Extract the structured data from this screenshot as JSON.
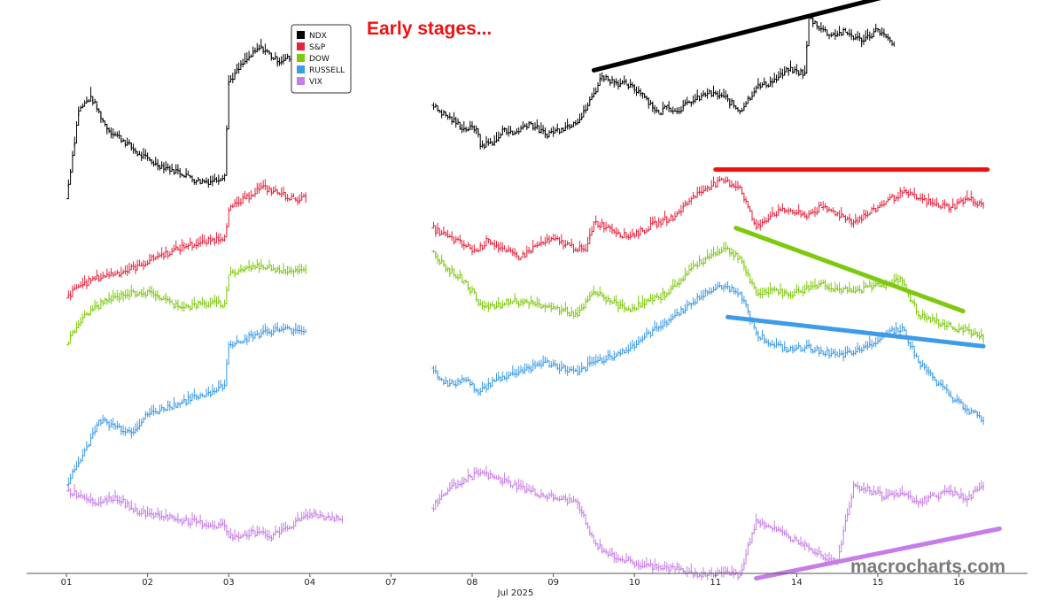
{
  "annotation": "Early stages...",
  "watermark": "macrocharts.com",
  "chart_data": {
    "type": "line",
    "title": "",
    "xlabel": "Jul 2025",
    "ylabel": "",
    "x_ticks": [
      "01",
      "02",
      "03",
      "04",
      "07",
      "08",
      "09",
      "10",
      "11",
      "14",
      "15",
      "16"
    ],
    "legend_position": "top-left",
    "grid": false,
    "series": [
      {
        "name": "NDX",
        "color": "#000000",
        "values": [
          [
            0.0,
            38
          ],
          [
            0.15,
            68
          ],
          [
            0.3,
            73
          ],
          [
            0.5,
            62
          ],
          [
            0.7,
            58
          ],
          [
            0.9,
            53
          ],
          [
            1.1,
            50
          ],
          [
            1.3,
            48
          ],
          [
            1.5,
            46
          ],
          [
            1.6,
            44
          ],
          [
            1.8,
            44
          ],
          [
            1.95,
            46
          ],
          [
            2.0,
            78
          ],
          [
            2.2,
            85
          ],
          [
            2.4,
            90
          ],
          [
            2.6,
            85
          ],
          [
            2.7,
            86
          ],
          [
            2.9,
            86
          ],
          [
            4.5,
            70
          ],
          [
            4.7,
            66
          ],
          [
            4.9,
            62
          ],
          [
            5.05,
            62
          ],
          [
            5.1,
            56
          ],
          [
            5.3,
            58
          ],
          [
            5.4,
            62
          ],
          [
            5.5,
            60
          ],
          [
            5.7,
            64
          ],
          [
            5.9,
            60
          ],
          [
            6.1,
            62
          ],
          [
            6.25,
            64
          ],
          [
            6.35,
            66
          ],
          [
            6.5,
            74
          ],
          [
            6.6,
            80
          ],
          [
            6.75,
            78
          ],
          [
            6.9,
            77
          ],
          [
            7.1,
            74
          ],
          [
            7.3,
            67
          ],
          [
            7.4,
            70
          ],
          [
            7.5,
            68
          ],
          [
            7.7,
            71
          ],
          [
            7.9,
            74
          ],
          [
            8.1,
            73
          ],
          [
            8.3,
            68
          ],
          [
            8.5,
            76
          ],
          [
            8.7,
            78
          ],
          [
            8.9,
            82
          ],
          [
            9.1,
            81
          ],
          [
            9.15,
            100
          ],
          [
            9.4,
            94
          ],
          [
            9.6,
            95
          ],
          [
            9.8,
            92
          ],
          [
            10.0,
            96
          ],
          [
            10.2,
            90
          ]
        ]
      },
      {
        "name": "S&P",
        "color": "#e8223c",
        "values": [
          [
            0.0,
            4
          ],
          [
            0.15,
            8
          ],
          [
            0.3,
            10
          ],
          [
            0.5,
            12
          ],
          [
            0.7,
            13
          ],
          [
            0.9,
            15
          ],
          [
            1.1,
            18
          ],
          [
            1.3,
            20
          ],
          [
            1.5,
            22
          ],
          [
            1.7,
            23
          ],
          [
            1.95,
            25
          ],
          [
            2.0,
            34
          ],
          [
            2.2,
            38
          ],
          [
            2.4,
            42
          ],
          [
            2.6,
            40
          ],
          [
            2.8,
            38
          ],
          [
            2.95,
            38
          ],
          [
            4.5,
            28
          ],
          [
            4.7,
            25
          ],
          [
            4.9,
            22
          ],
          [
            5.05,
            20
          ],
          [
            5.2,
            24
          ],
          [
            5.4,
            20
          ],
          [
            5.6,
            18
          ],
          [
            5.8,
            22
          ],
          [
            6.0,
            24
          ],
          [
            6.2,
            22
          ],
          [
            6.4,
            20
          ],
          [
            6.5,
            30
          ],
          [
            6.7,
            28
          ],
          [
            6.9,
            25
          ],
          [
            7.1,
            27
          ],
          [
            7.3,
            30
          ],
          [
            7.5,
            32
          ],
          [
            7.7,
            38
          ],
          [
            7.9,
            42
          ],
          [
            8.1,
            44
          ],
          [
            8.3,
            42
          ],
          [
            8.5,
            28
          ],
          [
            8.7,
            33
          ],
          [
            8.9,
            34
          ],
          [
            9.1,
            32
          ],
          [
            9.3,
            35
          ],
          [
            9.5,
            33
          ],
          [
            9.7,
            30
          ],
          [
            9.9,
            33
          ],
          [
            10.1,
            37
          ],
          [
            10.3,
            40
          ],
          [
            10.5,
            38
          ],
          [
            10.7,
            36
          ],
          [
            10.9,
            35
          ],
          [
            11.1,
            38
          ],
          [
            11.3,
            36
          ]
        ]
      },
      {
        "name": "DOW",
        "color": "#7ec90e",
        "values": [
          [
            0.0,
            -12
          ],
          [
            0.15,
            -5
          ],
          [
            0.3,
            0
          ],
          [
            0.5,
            3
          ],
          [
            0.7,
            5
          ],
          [
            0.9,
            6
          ],
          [
            1.1,
            5
          ],
          [
            1.3,
            2
          ],
          [
            1.5,
            1
          ],
          [
            1.7,
            2
          ],
          [
            1.95,
            2
          ],
          [
            2.0,
            12
          ],
          [
            2.2,
            14
          ],
          [
            2.4,
            15
          ],
          [
            2.6,
            14
          ],
          [
            2.8,
            13
          ],
          [
            2.95,
            13
          ],
          [
            4.5,
            20
          ],
          [
            4.7,
            14
          ],
          [
            4.9,
            10
          ],
          [
            5.1,
            2
          ],
          [
            5.3,
            1
          ],
          [
            5.5,
            3
          ],
          [
            5.7,
            2
          ],
          [
            5.9,
            1
          ],
          [
            6.1,
            0
          ],
          [
            6.3,
            -2
          ],
          [
            6.5,
            6
          ],
          [
            6.7,
            3
          ],
          [
            6.9,
            0
          ],
          [
            7.1,
            2
          ],
          [
            7.3,
            4
          ],
          [
            7.5,
            8
          ],
          [
            7.7,
            14
          ],
          [
            7.9,
            18
          ],
          [
            8.1,
            21
          ],
          [
            8.3,
            18
          ],
          [
            8.5,
            5
          ],
          [
            8.7,
            7
          ],
          [
            8.9,
            5
          ],
          [
            9.1,
            7
          ],
          [
            9.3,
            9
          ],
          [
            9.5,
            7
          ],
          [
            9.7,
            6
          ],
          [
            9.9,
            8
          ],
          [
            10.1,
            9
          ],
          [
            10.3,
            10
          ],
          [
            10.5,
            -2
          ],
          [
            10.7,
            -4
          ],
          [
            10.9,
            -6
          ],
          [
            11.1,
            -7
          ],
          [
            11.3,
            -10
          ]
        ]
      },
      {
        "name": "RUSSELL",
        "color": "#3d9be8",
        "values": [
          [
            0.0,
            -60
          ],
          [
            0.2,
            -50
          ],
          [
            0.4,
            -38
          ],
          [
            0.6,
            -40
          ],
          [
            0.8,
            -42
          ],
          [
            1.0,
            -36
          ],
          [
            1.2,
            -34
          ],
          [
            1.4,
            -32
          ],
          [
            1.6,
            -30
          ],
          [
            1.8,
            -28
          ],
          [
            1.95,
            -26
          ],
          [
            2.0,
            -12
          ],
          [
            2.2,
            -10
          ],
          [
            2.4,
            -8
          ],
          [
            2.6,
            -7
          ],
          [
            2.8,
            -7
          ],
          [
            2.95,
            -7
          ],
          [
            4.5,
            -20
          ],
          [
            4.7,
            -26
          ],
          [
            4.9,
            -24
          ],
          [
            5.1,
            -28
          ],
          [
            5.3,
            -24
          ],
          [
            5.5,
            -22
          ],
          [
            5.7,
            -20
          ],
          [
            5.9,
            -18
          ],
          [
            6.1,
            -20
          ],
          [
            6.3,
            -22
          ],
          [
            6.5,
            -18
          ],
          [
            6.7,
            -16
          ],
          [
            6.9,
            -14
          ],
          [
            7.1,
            -10
          ],
          [
            7.3,
            -6
          ],
          [
            7.5,
            -2
          ],
          [
            7.7,
            2
          ],
          [
            7.9,
            6
          ],
          [
            8.1,
            8
          ],
          [
            8.3,
            6
          ],
          [
            8.5,
            -8
          ],
          [
            8.7,
            -12
          ],
          [
            8.9,
            -14
          ],
          [
            9.1,
            -13
          ],
          [
            9.3,
            -14
          ],
          [
            9.5,
            -16
          ],
          [
            9.7,
            -15
          ],
          [
            9.9,
            -12
          ],
          [
            10.1,
            -8
          ],
          [
            10.3,
            -6
          ],
          [
            10.5,
            -18
          ],
          [
            10.7,
            -24
          ],
          [
            10.9,
            -30
          ],
          [
            11.1,
            -34
          ],
          [
            11.3,
            -38
          ]
        ]
      },
      {
        "name": "VIX",
        "color": "#c77de8",
        "values": [
          [
            0.0,
            -62
          ],
          [
            0.2,
            -64
          ],
          [
            0.4,
            -66
          ],
          [
            0.6,
            -64
          ],
          [
            0.8,
            -68
          ],
          [
            1.0,
            -70
          ],
          [
            1.2,
            -71
          ],
          [
            1.4,
            -72
          ],
          [
            1.6,
            -73
          ],
          [
            1.8,
            -74
          ],
          [
            1.95,
            -74
          ],
          [
            2.0,
            -78
          ],
          [
            2.2,
            -77
          ],
          [
            2.4,
            -76
          ],
          [
            2.5,
            -78
          ],
          [
            3.0,
            -70
          ],
          [
            3.2,
            -71
          ],
          [
            3.4,
            -72
          ],
          [
            4.5,
            -68
          ],
          [
            4.7,
            -62
          ],
          [
            4.9,
            -58
          ],
          [
            5.1,
            -56
          ],
          [
            5.3,
            -58
          ],
          [
            5.5,
            -60
          ],
          [
            5.7,
            -62
          ],
          [
            5.9,
            -64
          ],
          [
            6.1,
            -65
          ],
          [
            6.3,
            -66
          ],
          [
            6.5,
            -80
          ],
          [
            6.7,
            -84
          ],
          [
            6.9,
            -86
          ],
          [
            7.1,
            -88
          ],
          [
            7.3,
            -88
          ],
          [
            7.5,
            -89
          ],
          [
            7.7,
            -90
          ],
          [
            7.9,
            -91
          ],
          [
            8.1,
            -90
          ],
          [
            8.3,
            -91
          ],
          [
            8.5,
            -72
          ],
          [
            8.7,
            -75
          ],
          [
            8.9,
            -78
          ],
          [
            9.1,
            -80
          ],
          [
            9.3,
            -84
          ],
          [
            9.5,
            -86
          ],
          [
            9.7,
            -60
          ],
          [
            9.9,
            -62
          ],
          [
            10.1,
            -64
          ],
          [
            10.3,
            -63
          ],
          [
            10.5,
            -66
          ],
          [
            10.7,
            -64
          ],
          [
            10.9,
            -62
          ],
          [
            11.1,
            -65
          ],
          [
            11.3,
            -60
          ]
        ]
      }
    ],
    "trendlines": [
      {
        "color": "#000000",
        "from": [
          6.5,
          82
        ],
        "to": [
          10.35,
          109
        ]
      },
      {
        "color": "#ee1111",
        "from": [
          8.0,
          48
        ],
        "to": [
          11.35,
          48
        ]
      },
      {
        "color": "#7ec90e",
        "from": [
          8.25,
          28
        ],
        "to": [
          11.05,
          -0.5
        ]
      },
      {
        "color": "#3d9be8",
        "from": [
          8.15,
          -2.5
        ],
        "to": [
          11.3,
          -12.5
        ]
      },
      {
        "color": "#c77de8",
        "from": [
          8.5,
          -92
        ],
        "to": [
          11.5,
          -75
        ]
      }
    ]
  }
}
